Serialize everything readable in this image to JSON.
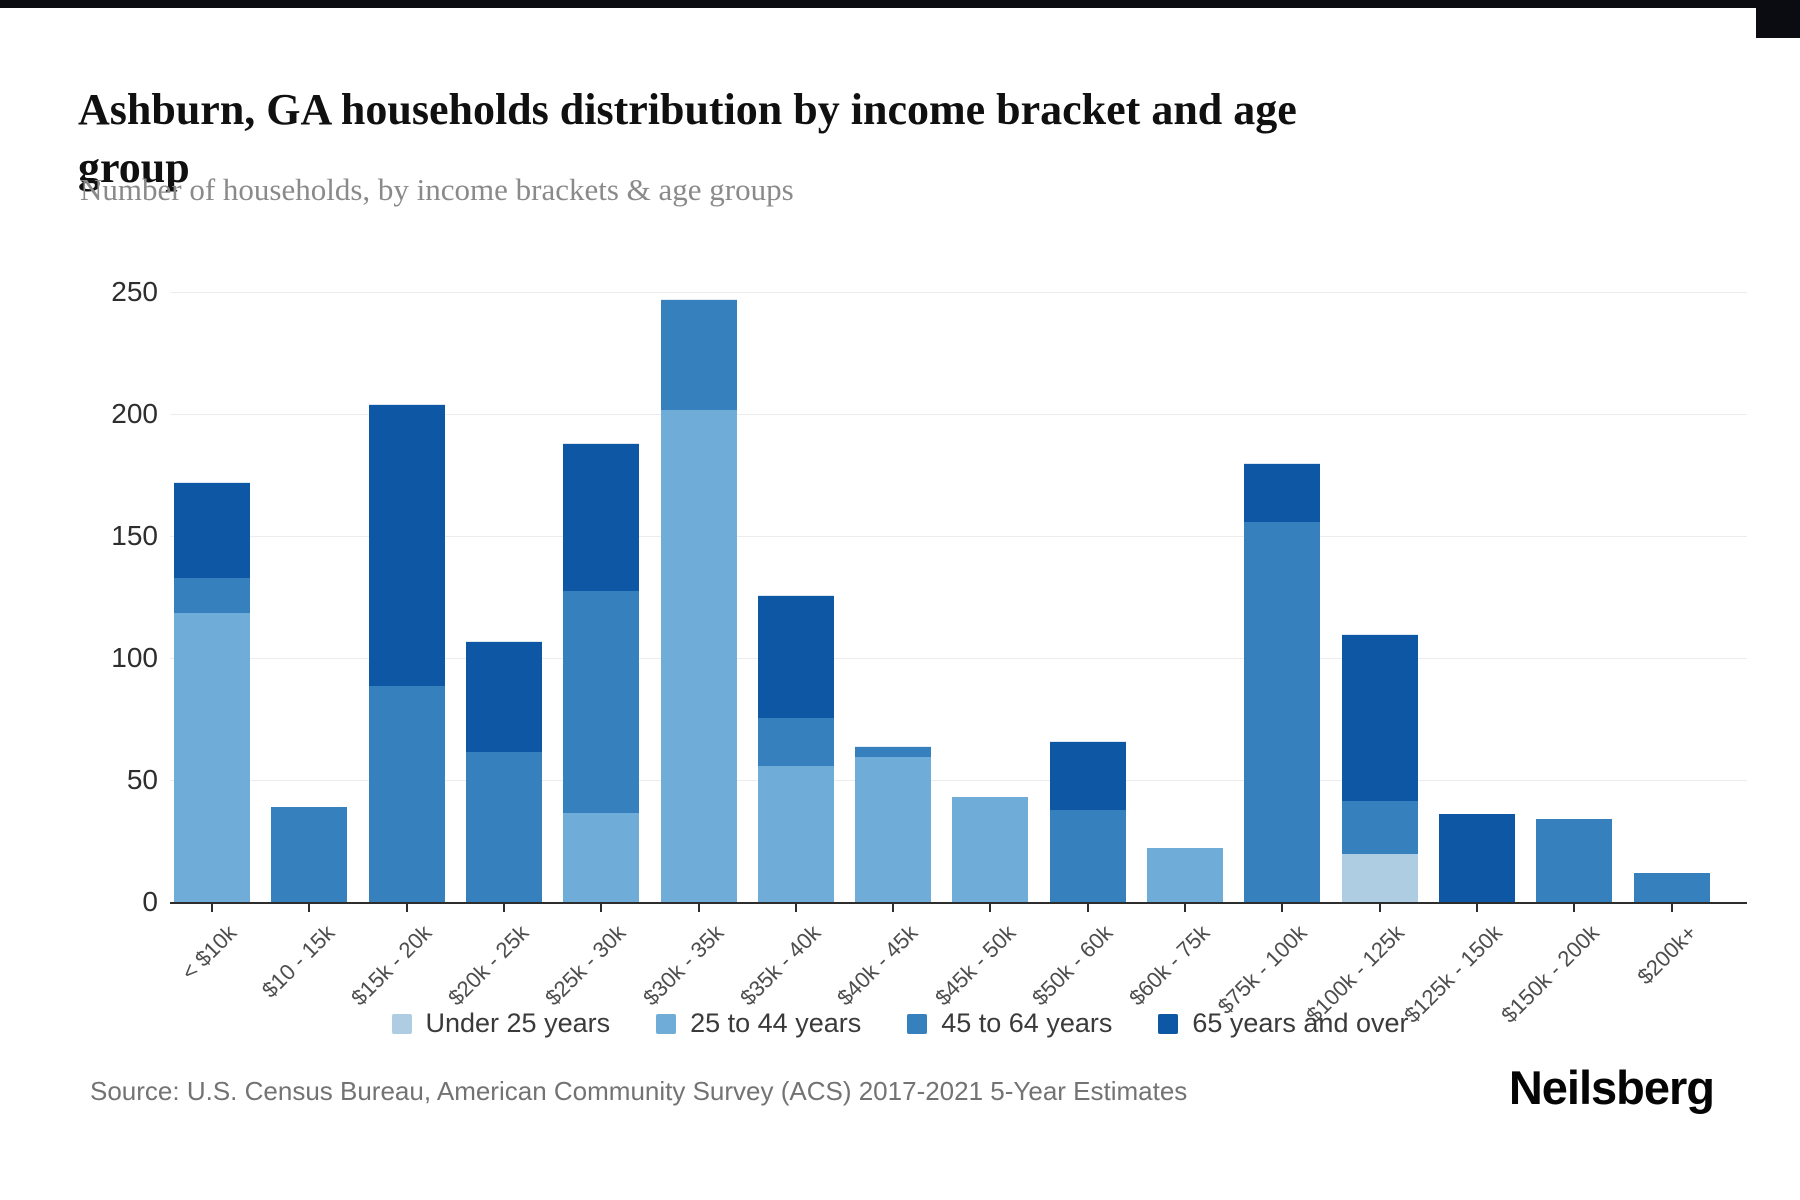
{
  "header": {
    "title": "Ashburn, GA households distribution by income bracket and age group",
    "subtitle": "Number of households, by income brackets & age groups"
  },
  "footer": {
    "source": "Source: U.S. Census Bureau, American Community Survey (ACS) 2017-2021 5-Year Estimates",
    "brand": "Neilsberg"
  },
  "legend": {
    "items": [
      {
        "label": "Under 25 years",
        "color": "#aecde3"
      },
      {
        "label": "25 to 44 years",
        "color": "#6fadd8"
      },
      {
        "label": "45 to 64 years",
        "color": "#3580bd"
      },
      {
        "label": "65 years and over",
        "color": "#0d57a4"
      }
    ]
  },
  "chart_data": {
    "type": "bar",
    "variant": "stacked",
    "title": "Ashburn, GA households distribution by income bracket and age group",
    "subtitle": "Number of households, by income brackets & age groups",
    "xlabel": "",
    "ylabel": "Number of households",
    "ylim": [
      0,
      250
    ],
    "yticks": [
      0,
      50,
      100,
      150,
      200,
      250
    ],
    "grid": true,
    "legend_position": "bottom",
    "categories": [
      "< $10k",
      "$10 - 15k",
      "$15k - 20k",
      "$20k - 25k",
      "$25k - 30k",
      "$30k - 35k",
      "$35k - 40k",
      "$40k - 45k",
      "$45k - 50k",
      "$50k - 60k",
      "$60k - 75k",
      "$75k - 100k",
      "$100k - 125k",
      "$125k - 150k",
      "$150k - 200k",
      "$200k+"
    ],
    "series": [
      {
        "name": "Under 25 years",
        "color": "#aecde3",
        "values": [
          0,
          0,
          0,
          0,
          0,
          0,
          0,
          0,
          0,
          0,
          0,
          0,
          20,
          0,
          0,
          0
        ]
      },
      {
        "name": "25 to 44 years",
        "color": "#6fadd8",
        "values": [
          119,
          0,
          0,
          0,
          37,
          202,
          56,
          60,
          43,
          0,
          22,
          0,
          0,
          0,
          0,
          0
        ]
      },
      {
        "name": "45 to 64 years",
        "color": "#3580bd",
        "values": [
          14,
          39,
          89,
          62,
          91,
          45,
          20,
          4,
          0,
          38,
          0,
          156,
          22,
          0,
          34,
          12
        ]
      },
      {
        "name": "65 years and over",
        "color": "#0d57a4",
        "values": [
          39,
          0,
          115,
          45,
          60,
          0,
          50,
          0,
          0,
          28,
          0,
          24,
          68,
          36,
          0,
          0
        ]
      }
    ],
    "totals": [
      172,
      39,
      204,
      107,
      188,
      247,
      126,
      64,
      43,
      66,
      22,
      180,
      110,
      36,
      34,
      12
    ]
  }
}
